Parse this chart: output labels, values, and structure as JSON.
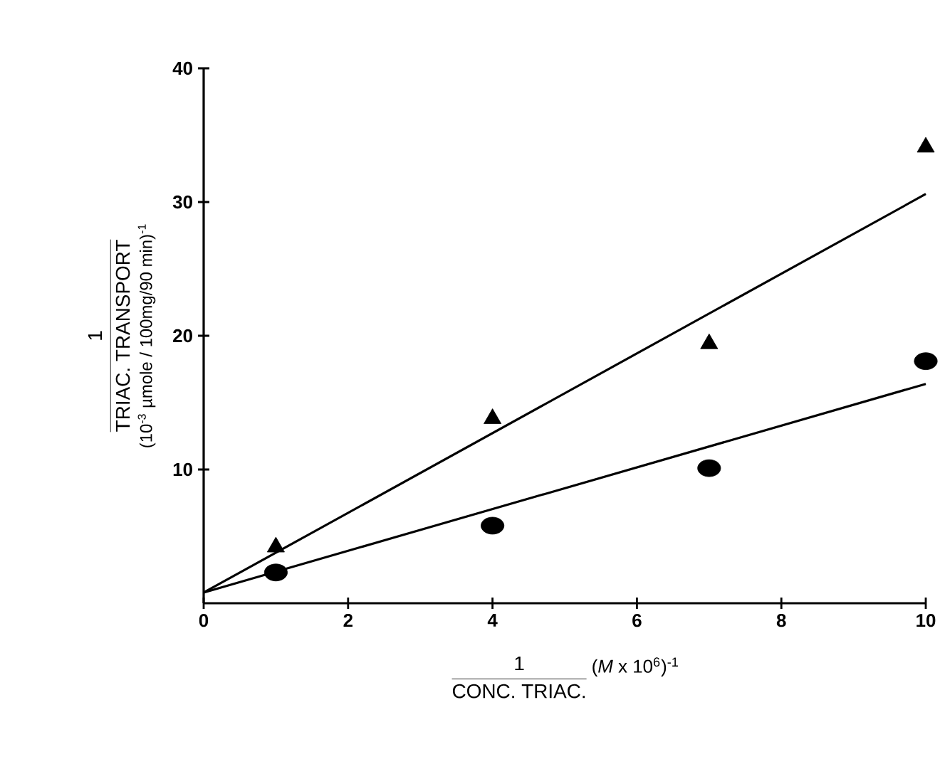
{
  "chart_data": {
    "type": "scatter",
    "xlabel": "CONC. TRIAC.",
    "ylabel": "TRIAC. TRANSPORT",
    "annotations": [
      "1",
      "(10$^{-3}$ µmole / 100mg/90 min)$^{-1}$",
      "1",
      "(*M* x 10$^{6}$)$^{-1}$"
    ],
    "series": [
      {
        "color": "#000000",
        "marker": "triangle",
        "x": [
          1,
          4,
          7,
          10
        ],
        "values": [
          4.2,
          13.8,
          19.4,
          34.1
        ]
      },
      {
        "color": "#000000",
        "marker": "circle",
        "x": [
          1,
          4,
          7,
          10
        ],
        "values": [
          2.3,
          5.8,
          10.1,
          18.1
        ]
      },
      {
        "type": "line",
        "color": "#000000",
        "marker": "none",
        "x": [
          0,
          10
        ],
        "values": [
          0.8,
          30.6
        ]
      },
      {
        "type": "line",
        "color": "#000000",
        "marker": "none",
        "x": [
          0,
          10
        ],
        "values": [
          0.8,
          16.4
        ]
      }
    ],
    "xlim": [
      0,
      10
    ],
    "ylim": [
      0,
      40
    ],
    "xticks": [
      0,
      2,
      4,
      6,
      8,
      10
    ],
    "yticks": [
      10,
      20,
      30,
      40
    ],
    "grid": false
  }
}
